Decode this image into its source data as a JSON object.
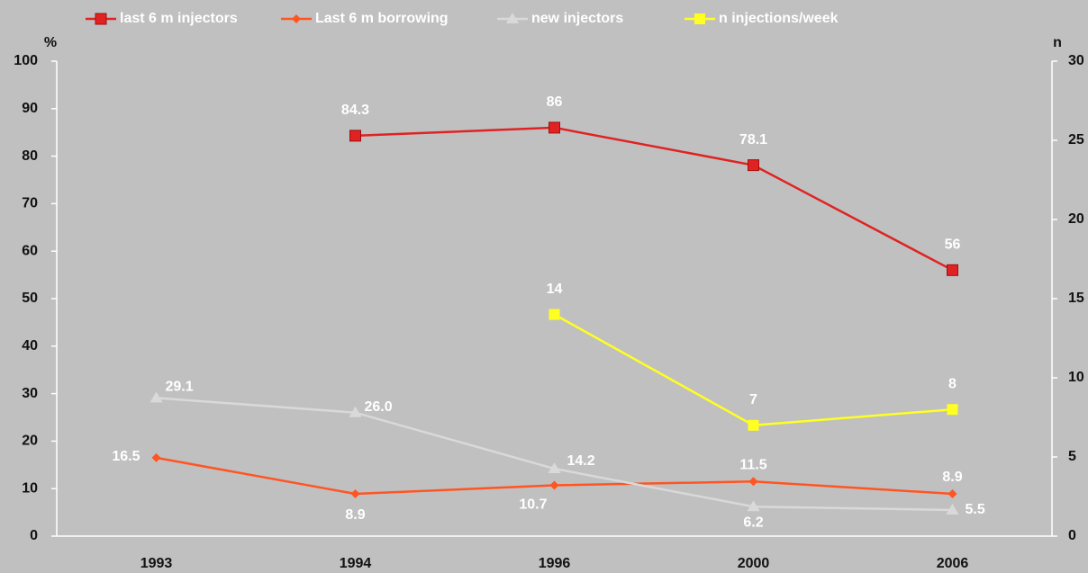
{
  "chart_data": {
    "type": "line",
    "categories": [
      "1993",
      "1994",
      "1996",
      "2000",
      "2006"
    ],
    "y_label": "%",
    "y2_label": "n",
    "ylim": [
      0,
      100
    ],
    "yticks": [
      0,
      10,
      20,
      30,
      40,
      50,
      60,
      70,
      80,
      90,
      100
    ],
    "y2lim": [
      0,
      30
    ],
    "y2ticks": [
      0,
      5,
      10,
      15,
      20,
      25,
      30
    ],
    "legend": "top",
    "series": [
      {
        "name": "last 6 m injectors",
        "color": "#e02222",
        "marker": "square",
        "values": [
          null,
          84.3,
          86,
          78.1,
          56
        ]
      },
      {
        "name": "Last 6 m borrowing",
        "color": "#ff5522",
        "marker": "diamond",
        "values": [
          16.5,
          8.9,
          10.7,
          11.5,
          8.9
        ]
      },
      {
        "name": "new injectors",
        "color": "#d9d9d9",
        "marker": "triangle",
        "values": [
          29.1,
          26.0,
          14.2,
          6.2,
          5.5
        ],
        "value_labels": [
          "29.1",
          "26.0",
          "14.2",
          "6.2",
          "5.5"
        ]
      },
      {
        "name": "n injections/week",
        "color": "#ffff22",
        "marker": "square",
        "axis": "y2",
        "values": [
          null,
          null,
          14,
          7,
          8
        ]
      }
    ]
  }
}
